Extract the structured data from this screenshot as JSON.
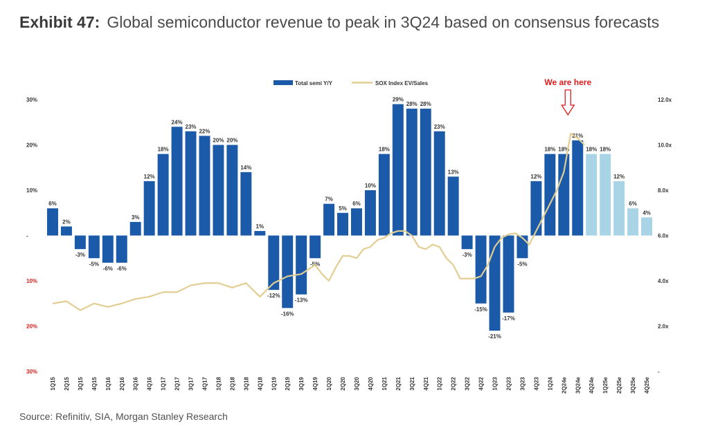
{
  "header": {
    "exhibit_label": "Exhibit 47:",
    "title": "Global semiconductor revenue to peak in 3Q24 based on consensus forecasts"
  },
  "source": "Source: Refinitiv, SIA, Morgan Stanley Research",
  "chart_data": {
    "type": "bar",
    "categories": [
      "1Q15",
      "2Q15",
      "3Q15",
      "4Q15",
      "1Q16",
      "2Q16",
      "3Q16",
      "4Q16",
      "1Q17",
      "2Q17",
      "3Q17",
      "4Q17",
      "1Q18",
      "2Q18",
      "3Q18",
      "4Q18",
      "1Q19",
      "2Q19",
      "3Q19",
      "4Q19",
      "1Q20",
      "2Q20",
      "3Q20",
      "4Q20",
      "1Q21",
      "2Q21",
      "3Q21",
      "4Q21",
      "1Q22",
      "2Q22",
      "3Q22",
      "4Q22",
      "1Q23",
      "2Q23",
      "3Q23",
      "4Q23",
      "1Q24",
      "2Q24e",
      "3Q24e",
      "4Q24e",
      "1Q25e",
      "2Q25e",
      "3Q25e",
      "4Q25e"
    ],
    "series": [
      {
        "name": "Total semi Y/Y",
        "axis": "left",
        "values": [
          6,
          2,
          -3,
          -5,
          -6,
          -6,
          3,
          12,
          18,
          24,
          23,
          22,
          20,
          20,
          14,
          1,
          -12,
          -16,
          -13,
          -5,
          7,
          5,
          6,
          10,
          18,
          29,
          28,
          28,
          23,
          13,
          -3,
          -15,
          -21,
          -17,
          -5,
          12,
          18,
          18,
          21,
          18,
          18,
          12,
          6,
          4
        ],
        "labels": [
          "6%",
          "2%",
          "-3%",
          "-5%",
          "-6%",
          "-6%",
          "3%",
          "12%",
          "18%",
          "24%",
          "23%",
          "22%",
          "20%",
          "20%",
          "14%",
          "1%",
          "-12%",
          "-16%",
          "-13%",
          "-5%",
          "7%",
          "5%",
          "6%",
          "10%",
          "18%",
          "29%",
          "28%",
          "28%",
          "23%",
          "13%",
          "-3%",
          "-15%",
          "-21%",
          "-17%",
          "-5%",
          "12%",
          "18%",
          "18%",
          "21%",
          "18%",
          "18%",
          "12%",
          "6%",
          "4%"
        ],
        "forecast_from_index": 39,
        "color": "#1a5aa8",
        "forecast_color": "#a9d4e6"
      },
      {
        "name": "SOX Index EV/Sales",
        "axis": "right",
        "type": "line",
        "x": [
          0,
          1,
          2,
          3,
          4,
          5,
          6,
          7,
          8,
          9,
          10,
          11,
          12,
          13,
          14,
          15,
          16,
          17,
          18,
          19,
          19.5,
          20,
          20.5,
          21,
          21.5,
          22,
          22.5,
          23,
          23.5,
          24,
          24.5,
          25,
          25.5,
          26,
          26.5,
          27,
          27.5,
          28,
          28.5,
          29,
          29.5,
          30,
          30.5,
          31,
          31.5,
          32,
          32.5,
          33,
          33.5,
          34,
          34.5,
          35,
          35.5,
          36,
          36.5,
          37,
          37.5,
          38,
          38.5
        ],
        "values": [
          3.0,
          3.1,
          2.7,
          3.0,
          2.85,
          3.0,
          3.2,
          3.3,
          3.5,
          3.5,
          3.8,
          3.9,
          3.9,
          3.7,
          3.9,
          3.3,
          3.9,
          4.2,
          4.3,
          4.7,
          4.3,
          4.0,
          4.6,
          5.1,
          5.1,
          5.0,
          5.4,
          5.5,
          5.8,
          5.9,
          6.1,
          6.2,
          6.2,
          6.0,
          5.5,
          5.4,
          5.6,
          5.5,
          5.0,
          4.7,
          4.1,
          4.1,
          4.1,
          4.2,
          4.7,
          5.5,
          5.9,
          6.05,
          6.1,
          5.9,
          5.6,
          6.2,
          6.8,
          7.4,
          8.0,
          8.8,
          10.5,
          10.3,
          10.0
        ],
        "color": "#e2cd93"
      }
    ],
    "y_left": {
      "ylim": [
        -30,
        30
      ],
      "ticks": [
        30,
        20,
        10,
        0,
        -10,
        -20,
        -30
      ],
      "tick_labels": [
        "30%",
        "20%",
        "10%",
        "-",
        "10%",
        "20%",
        "30%"
      ]
    },
    "y_right": {
      "ylim": [
        0,
        12
      ],
      "ticks": [
        12,
        10,
        8,
        6,
        4,
        2,
        0
      ],
      "tick_labels": [
        "12.0x",
        "10.0x",
        "8.0x",
        "6.0x",
        "4.0x",
        "2.0x",
        "-"
      ]
    },
    "legend": {
      "position": "top-center",
      "entries": [
        "Total semi Y/Y",
        "SOX Index EV/Sales"
      ]
    },
    "annotation": {
      "text": "We are here",
      "category": "3Q24e",
      "arrow_color": "#e31b1b"
    },
    "grid": false,
    "xlabel": "",
    "ylabel": ""
  }
}
